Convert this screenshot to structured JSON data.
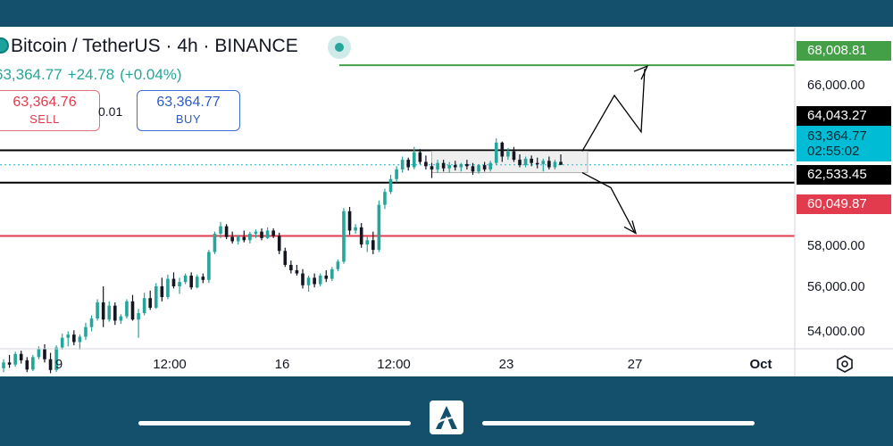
{
  "header": {
    "title": "Bitcoin / TetherUS · 4h · BINANCE",
    "last_price": "63,364.77",
    "change": "+24.78",
    "change_pct": "(+0.04%)",
    "sell": {
      "price": "63,364.76",
      "label": "SELL"
    },
    "spread": "0.01",
    "buy": {
      "price": "63,364.77",
      "label": "BUY"
    }
  },
  "price_axis": {
    "ticks": [
      "66,000.00",
      "58,000.00",
      "56,000.00",
      "54,000.00"
    ],
    "tags": {
      "target_up": "68,008.81",
      "range_top": "64,043.27",
      "current": "63,364.77",
      "countdown": "02:55:02",
      "range_bottom": "62,533.45",
      "target_down": "60,049.87"
    }
  },
  "time_axis": {
    "labels": [
      "9",
      "12:00",
      "16",
      "12:00",
      "23",
      "27",
      "Oct"
    ]
  },
  "colors": {
    "up": "#26a69a",
    "down": "#131722",
    "resistance_green": "#43a047",
    "support_red": "#e23b4d",
    "current_price": "#00bcd4",
    "frame": "#14506b"
  },
  "icons": [
    "bitcoin-icon",
    "settings-hexagon-icon",
    "brand-logo-icon"
  ],
  "chart_data": {
    "type": "candlestick",
    "y_axis": {
      "ylim": [
        53500,
        69800
      ]
    },
    "levels": [
      {
        "value": 68008.81,
        "color": "green"
      },
      {
        "value": 64043.27,
        "color": "black"
      },
      {
        "value": 63364.77,
        "color": "cyan",
        "style": "dotted"
      },
      {
        "value": 62533.45,
        "color": "black"
      },
      {
        "value": 60049.87,
        "color": "red"
      }
    ],
    "consolidation_box": {
      "from": 63000,
      "to": 64000
    },
    "projection_up": [
      [
        64000,
        66600,
        64900,
        68000
      ]
    ],
    "projection_down": [
      [
        63000,
        62300,
        60100
      ]
    ],
    "candles": [
      [
        53880,
        54300,
        53700,
        54150
      ],
      [
        54150,
        54500,
        53900,
        54050
      ],
      [
        54050,
        54650,
        53950,
        54550
      ],
      [
        54550,
        54700,
        54100,
        54250
      ],
      [
        54250,
        54400,
        53700,
        53820
      ],
      [
        53820,
        54500,
        53750,
        54400
      ],
      [
        54400,
        54900,
        54300,
        54800
      ],
      [
        54800,
        55000,
        54150,
        54300
      ],
      [
        54300,
        54600,
        53650,
        53800
      ],
      [
        53800,
        54950,
        53700,
        54850
      ],
      [
        54850,
        55500,
        54750,
        55300
      ],
      [
        55300,
        55600,
        54900,
        55450
      ],
      [
        55450,
        55650,
        54950,
        55100
      ],
      [
        55100,
        55450,
        54750,
        55350
      ],
      [
        55350,
        56000,
        55200,
        55800
      ],
      [
        55800,
        56350,
        55600,
        56200
      ],
      [
        56200,
        57100,
        56100,
        56950
      ],
      [
        56950,
        57700,
        55800,
        56150
      ],
      [
        56150,
        57000,
        56050,
        56800
      ],
      [
        56800,
        56950,
        55900,
        56100
      ],
      [
        56100,
        56400,
        55950,
        56300
      ],
      [
        56300,
        57100,
        56200,
        57000
      ],
      [
        57000,
        57300,
        56100,
        56150
      ],
      [
        56150,
        56650,
        55300,
        56450
      ],
      [
        56450,
        57400,
        56350,
        57150
      ],
      [
        57150,
        57500,
        56600,
        56700
      ],
      [
        56700,
        57850,
        56650,
        57700
      ],
      [
        57700,
        58100,
        57000,
        57200
      ],
      [
        57200,
        58250,
        57100,
        58050
      ],
      [
        58050,
        58350,
        57600,
        57700
      ],
      [
        57700,
        58100,
        57350,
        57900
      ],
      [
        57900,
        58300,
        57800,
        58200
      ],
      [
        58200,
        58350,
        57550,
        57650
      ],
      [
        57650,
        58250,
        57600,
        58150
      ],
      [
        58150,
        58300,
        57850,
        58000
      ],
      [
        58000,
        59400,
        57850,
        59300
      ],
      [
        59300,
        60250,
        59200,
        60150
      ],
      [
        60150,
        60700,
        59950,
        60500
      ],
      [
        60500,
        60600,
        59900,
        60000
      ],
      [
        60000,
        60250,
        59700,
        59800
      ],
      [
        59800,
        60100,
        59650,
        60000
      ],
      [
        60000,
        60300,
        59750,
        59850
      ],
      [
        59850,
        60250,
        59700,
        60150
      ],
      [
        60150,
        60350,
        59950,
        60250
      ],
      [
        60250,
        60400,
        59850,
        59950
      ],
      [
        59950,
        60450,
        59900,
        60300
      ],
      [
        60300,
        60400,
        59950,
        60050
      ],
      [
        60050,
        60200,
        59200,
        59350
      ],
      [
        59350,
        59500,
        58600,
        58700
      ],
      [
        58700,
        58900,
        58300,
        58450
      ],
      [
        58450,
        58700,
        58200,
        58300
      ],
      [
        58300,
        58500,
        57600,
        57750
      ],
      [
        57750,
        58200,
        57450,
        58100
      ],
      [
        58100,
        58300,
        57650,
        57800
      ],
      [
        57800,
        58300,
        57700,
        58200
      ],
      [
        58200,
        58450,
        57900,
        58050
      ],
      [
        58050,
        58600,
        57950,
        58500
      ],
      [
        58500,
        58950,
        58400,
        58850
      ],
      [
        58850,
        61350,
        58750,
        61200
      ],
      [
        61200,
        61400,
        60100,
        60300
      ],
      [
        60300,
        60600,
        60150,
        60450
      ],
      [
        60450,
        60650,
        59500,
        59650
      ],
      [
        59650,
        60000,
        59300,
        59850
      ],
      [
        59850,
        60250,
        59200,
        59400
      ],
      [
        59400,
        61700,
        59300,
        61500
      ],
      [
        61500,
        62250,
        61300,
        62100
      ],
      [
        62100,
        62900,
        62000,
        62700
      ],
      [
        62700,
        63300,
        62550,
        63150
      ],
      [
        63150,
        63750,
        63000,
        63600
      ],
      [
        63600,
        63700,
        63100,
        63250
      ],
      [
        63250,
        64200,
        63150,
        63950
      ],
      [
        63950,
        64100,
        63400,
        63500
      ],
      [
        63500,
        63800,
        63150,
        63300
      ],
      [
        63300,
        63450,
        62750,
        63150
      ],
      [
        63150,
        63600,
        63000,
        63450
      ],
      [
        63450,
        63600,
        63050,
        63200
      ],
      [
        63200,
        63500,
        63000,
        63350
      ],
      [
        63350,
        63550,
        63100,
        63250
      ],
      [
        63250,
        63450,
        63050,
        63400
      ],
      [
        63400,
        63600,
        63150,
        63300
      ],
      [
        63300,
        63450,
        62900,
        63050
      ],
      [
        63050,
        63400,
        62950,
        63350
      ],
      [
        63350,
        63500,
        63050,
        63150
      ],
      [
        63150,
        63550,
        63050,
        63450
      ],
      [
        63450,
        64600,
        63350,
        64400
      ],
      [
        64400,
        64450,
        63500,
        63750
      ],
      [
        63750,
        64150,
        63600,
        64000
      ],
      [
        64000,
        64200,
        63500,
        63600
      ],
      [
        63600,
        63850,
        63250,
        63350
      ],
      [
        63350,
        63750,
        63250,
        63650
      ],
      [
        63650,
        63800,
        63300,
        63450
      ],
      [
        63450,
        63700,
        63200,
        63400
      ],
      [
        63400,
        63650,
        63050,
        63550
      ],
      [
        63550,
        63750,
        63150,
        63250
      ],
      [
        63250,
        63600,
        63150,
        63500
      ],
      [
        63500,
        63850,
        63350,
        63364.77
      ]
    ]
  }
}
